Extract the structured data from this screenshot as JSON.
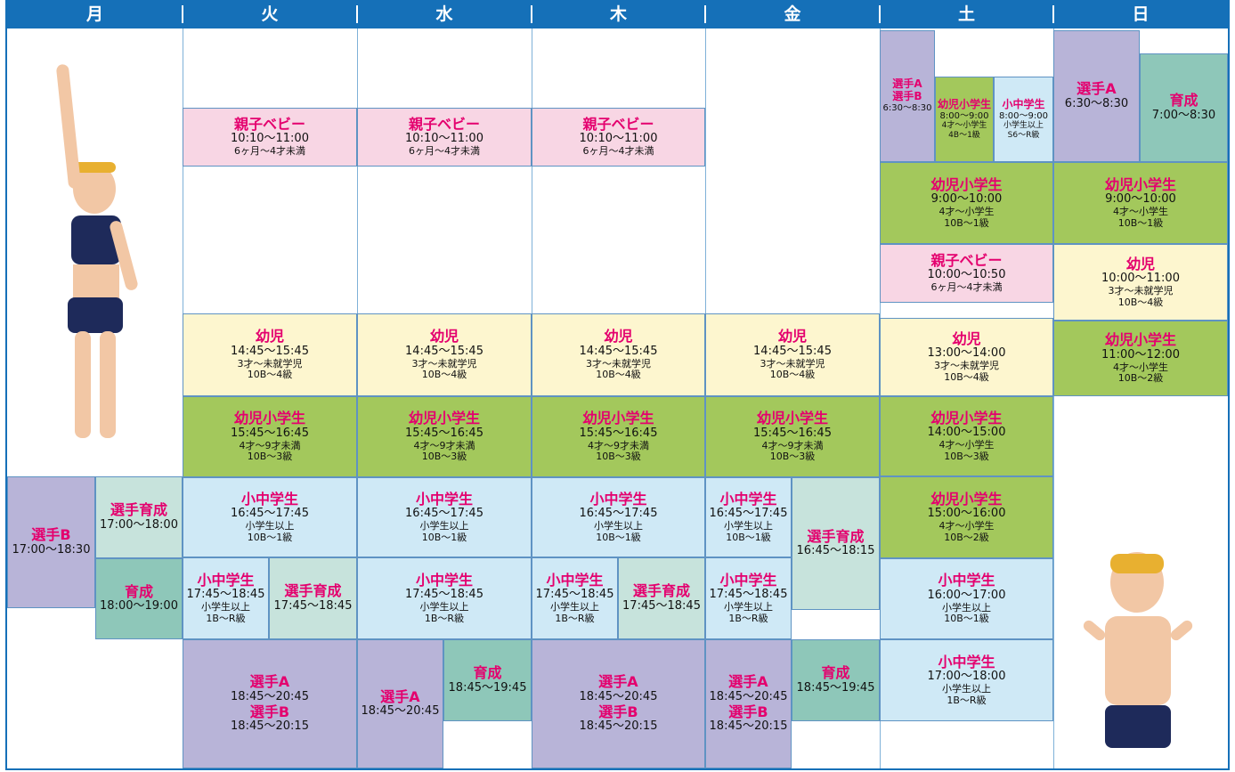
{
  "days": [
    "月",
    "火",
    "水",
    "木",
    "金",
    "土",
    "日"
  ],
  "columns": [
    {
      "blocks": [
        {
          "lines": [
            "選手B",
            "17:00〜18:30"
          ]
        },
        {
          "lines": [
            "選手育成",
            "17:00〜18:00"
          ]
        },
        {
          "lines": [
            "育成",
            "18:00〜19:00"
          ]
        }
      ]
    },
    {
      "blocks": [
        {
          "lines": [
            "親子ベビー",
            "10:10〜11:00",
            "6ヶ月〜4才未満"
          ]
        },
        {
          "lines": [
            "幼児",
            "14:45〜15:45",
            "3才〜未就学児",
            "10B〜4級"
          ]
        },
        {
          "lines": [
            "幼児小学生",
            "15:45〜16:45",
            "4才〜9才未満",
            "10B〜3級"
          ]
        },
        {
          "lines": [
            "小中学生",
            "16:45〜17:45",
            "小学生以上",
            "10B〜1級"
          ]
        },
        {
          "lines": [
            "小中学生",
            "17:45〜18:45",
            "小学生以上",
            "1B〜R級"
          ]
        },
        {
          "lines": [
            "選手育成",
            "17:45〜18:45"
          ]
        },
        {
          "lines": [
            "選手A",
            "18:45〜20:45",
            "選手B",
            "18:45〜20:15"
          ]
        }
      ]
    },
    {
      "blocks": [
        {
          "lines": [
            "親子ベビー",
            "10:10〜11:00",
            "6ヶ月〜4才未満"
          ]
        },
        {
          "lines": [
            "幼児",
            "14:45〜15:45",
            "3才〜未就学児",
            "10B〜4級"
          ]
        },
        {
          "lines": [
            "幼児小学生",
            "15:45〜16:45",
            "4才〜9才未満",
            "10B〜3級"
          ]
        },
        {
          "lines": [
            "小中学生",
            "16:45〜17:45",
            "小学生以上",
            "10B〜1級"
          ]
        },
        {
          "lines": [
            "小中学生",
            "17:45〜18:45",
            "小学生以上",
            "1B〜R級"
          ]
        },
        {
          "lines": [
            "選手A",
            "18:45〜20:45"
          ]
        },
        {
          "lines": [
            "育成",
            "18:45〜19:45"
          ]
        }
      ]
    },
    {
      "blocks": [
        {
          "lines": [
            "親子ベビー",
            "10:10〜11:00",
            "6ヶ月〜4才未満"
          ]
        },
        {
          "lines": [
            "幼児",
            "14:45〜15:45",
            "3才〜未就学児",
            "10B〜4級"
          ]
        },
        {
          "lines": [
            "幼児小学生",
            "15:45〜16:45",
            "4才〜9才未満",
            "10B〜3級"
          ]
        },
        {
          "lines": [
            "小中学生",
            "16:45〜17:45",
            "小学生以上",
            "10B〜1級"
          ]
        },
        {
          "lines": [
            "小中学生",
            "17:45〜18:45",
            "小学生以上",
            "1B〜R級"
          ]
        },
        {
          "lines": [
            "選手育成",
            "17:45〜18:45"
          ]
        },
        {
          "lines": [
            "選手A",
            "18:45〜20:45",
            "選手B",
            "18:45〜20:15"
          ]
        }
      ]
    },
    {
      "blocks": [
        {
          "lines": [
            "幼児",
            "14:45〜15:45",
            "3才〜未就学児",
            "10B〜4級"
          ]
        },
        {
          "lines": [
            "幼児小学生",
            "15:45〜16:45",
            "4才〜9才未満",
            "10B〜3級"
          ]
        },
        {
          "lines": [
            "小中学生",
            "16:45〜17:45",
            "小学生以上",
            "10B〜1級"
          ]
        },
        {
          "lines": [
            "小中学生",
            "17:45〜18:45",
            "小学生以上",
            "1B〜R級"
          ]
        },
        {
          "lines": [
            "選手育成",
            "16:45〜18:15"
          ]
        },
        {
          "lines": [
            "選手A",
            "18:45〜20:45",
            "選手B",
            "18:45〜20:15"
          ]
        },
        {
          "lines": [
            "育成",
            "18:45〜19:45"
          ]
        }
      ]
    },
    {
      "blocks": [
        {
          "lines": [
            "選手A",
            "選手B",
            "6:30〜8:30"
          ]
        },
        {
          "lines": [
            "幼児小学生",
            "8:00〜9:00",
            "4才〜小学生",
            "4B〜1級"
          ]
        },
        {
          "lines": [
            "小中学生",
            "8:00〜9:00",
            "小学生以上",
            "S6〜R級"
          ]
        },
        {
          "lines": [
            "幼児小学生",
            "9:00〜10:00",
            "4才〜小学生",
            "10B〜1級"
          ]
        },
        {
          "lines": [
            "親子ベビー",
            "10:00〜10:50",
            "6ヶ月〜4才未満"
          ]
        },
        {
          "lines": [
            "幼児",
            "13:00〜14:00",
            "3才〜未就学児",
            "10B〜4級"
          ]
        },
        {
          "lines": [
            "幼児小学生",
            "14:00〜15:00",
            "4才〜小学生",
            "10B〜3級"
          ]
        },
        {
          "lines": [
            "幼児小学生",
            "15:00〜16:00",
            "4才〜小学生",
            "10B〜2級"
          ]
        },
        {
          "lines": [
            "小中学生",
            "16:00〜17:00",
            "小学生以上",
            "10B〜1級"
          ]
        },
        {
          "lines": [
            "小中学生",
            "17:00〜18:00",
            "小学生以上",
            "1B〜R級"
          ]
        }
      ]
    },
    {
      "blocks": [
        {
          "lines": [
            "選手A",
            "6:30〜8:30"
          ]
        },
        {
          "lines": [
            "育成",
            "7:00〜8:30"
          ]
        },
        {
          "lines": [
            "幼児小学生",
            "9:00〜10:00",
            "4才〜小学生",
            "10B〜1級"
          ]
        },
        {
          "lines": [
            "幼児",
            "10:00〜11:00",
            "3才〜未就学児",
            "10B〜4級"
          ]
        },
        {
          "lines": [
            "幼児小学生",
            "11:00〜12:00",
            "4才〜小学生",
            "10B〜2級"
          ]
        }
      ]
    }
  ]
}
